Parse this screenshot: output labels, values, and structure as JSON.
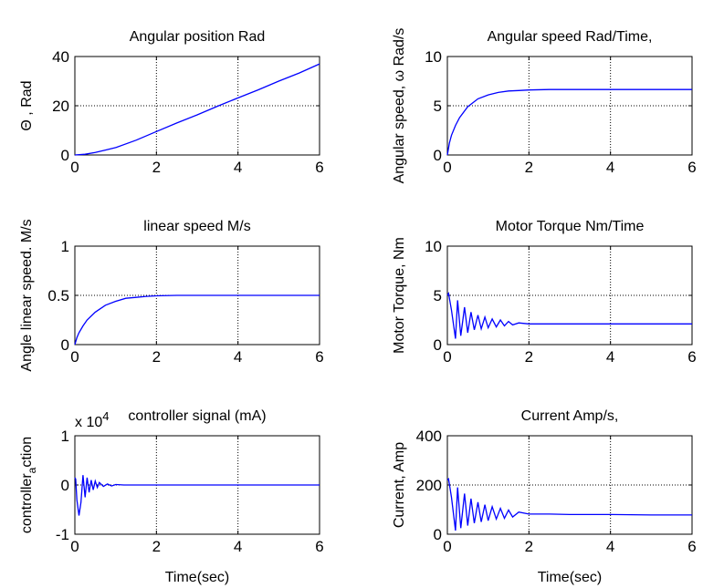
{
  "chart_data": [
    {
      "type": "line",
      "title": "Angular position Rad",
      "xlabel": "",
      "ylabel": "Θ ,  Rad",
      "xlim": [
        0,
        6
      ],
      "ylim": [
        0,
        40
      ],
      "xticks": [
        "0",
        "2",
        "4",
        "6"
      ],
      "yticks": [
        "0",
        "20",
        "40"
      ],
      "grid": true,
      "x": [
        0,
        0.25,
        0.5,
        0.75,
        1,
        1.5,
        2,
        2.5,
        3,
        3.5,
        4,
        4.5,
        5,
        5.5,
        6
      ],
      "y": [
        0,
        0.3,
        1,
        2,
        3,
        6,
        9.5,
        13,
        16.3,
        19.8,
        23.2,
        26.5,
        30,
        33.3,
        37
      ]
    },
    {
      "type": "line",
      "title": "Angular speed Rad/Time,",
      "xlabel": "",
      "ylabel": "Angular speed,  ω Rad/s",
      "xlim": [
        0,
        6
      ],
      "ylim": [
        0,
        10
      ],
      "xticks": [
        "0",
        "2",
        "4",
        "6"
      ],
      "yticks": [
        "0",
        "5",
        "10"
      ],
      "grid": true,
      "x": [
        0,
        0.05,
        0.1,
        0.2,
        0.3,
        0.5,
        0.75,
        1,
        1.25,
        1.5,
        1.75,
        2,
        2.5,
        3,
        4,
        5,
        6
      ],
      "y": [
        0,
        1.2,
        2.0,
        3.0,
        3.8,
        4.9,
        5.7,
        6.1,
        6.35,
        6.5,
        6.55,
        6.6,
        6.65,
        6.65,
        6.65,
        6.65,
        6.65
      ]
    },
    {
      "type": "line",
      "title": "linear speed M/s",
      "xlabel": "",
      "ylabel": "Angle linear speed. M/s",
      "xlim": [
        0,
        6
      ],
      "ylim": [
        0,
        1
      ],
      "xticks": [
        "0",
        "2",
        "4",
        "6"
      ],
      "yticks": [
        "0",
        "0.5",
        "1"
      ],
      "grid": true,
      "x": [
        0,
        0.05,
        0.1,
        0.2,
        0.3,
        0.5,
        0.75,
        1,
        1.25,
        1.5,
        1.75,
        2,
        2.5,
        3,
        4,
        5,
        6
      ],
      "y": [
        0,
        0.07,
        0.12,
        0.19,
        0.25,
        0.33,
        0.4,
        0.44,
        0.47,
        0.48,
        0.49,
        0.495,
        0.5,
        0.5,
        0.5,
        0.5,
        0.5
      ]
    },
    {
      "type": "line",
      "title": "Motor Torque Nm/Time",
      "xlabel": "",
      "ylabel": "Motor Torque,  Nm",
      "xlim": [
        0,
        6
      ],
      "ylim": [
        0,
        10
      ],
      "xticks": [
        "0",
        "2",
        "4",
        "6"
      ],
      "yticks": [
        "0",
        "5",
        "10"
      ],
      "grid": true,
      "x": [
        0,
        0.03,
        0.1,
        0.2,
        0.25,
        0.33,
        0.42,
        0.5,
        0.58,
        0.66,
        0.75,
        0.83,
        0.92,
        1.0,
        1.1,
        1.2,
        1.3,
        1.4,
        1.5,
        1.6,
        1.75,
        2,
        2.5,
        3,
        4,
        5,
        6
      ],
      "y": [
        5,
        5.2,
        3.5,
        0.6,
        4.5,
        0.9,
        3.8,
        1.2,
        3.3,
        1.5,
        3.0,
        1.6,
        2.8,
        1.7,
        2.6,
        1.8,
        2.5,
        1.9,
        2.35,
        2.0,
        2.2,
        2.1,
        2.1,
        2.1,
        2.1,
        2.1,
        2.1
      ]
    },
    {
      "type": "line",
      "title": "controller signal (mA)",
      "xlabel": "Time(sec)",
      "ylabel": "controller action",
      "ylabel_main": "controller",
      "ylabel_sub": "a",
      "ylabel_rest": "ction",
      "exponent": "x 10",
      "exponent_power": "4",
      "xlim": [
        0,
        6
      ],
      "ylim": [
        -1,
        1
      ],
      "xticks": [
        "0",
        "2",
        "4",
        "6"
      ],
      "yticks": [
        "-1",
        "0",
        "1"
      ],
      "grid": true,
      "x": [
        0,
        0.02,
        0.05,
        0.1,
        0.15,
        0.2,
        0.25,
        0.3,
        0.35,
        0.4,
        0.45,
        0.5,
        0.55,
        0.6,
        0.7,
        0.8,
        0.9,
        1.0,
        1.2,
        1.5,
        2,
        3,
        4,
        5,
        6
      ],
      "y": [
        0.15,
        0.12,
        -0.3,
        -0.62,
        -0.35,
        0.2,
        -0.25,
        0.15,
        -0.15,
        0.1,
        -0.1,
        0.08,
        -0.05,
        0.05,
        -0.03,
        0.02,
        -0.02,
        0.01,
        0,
        0,
        0,
        0,
        0,
        0,
        0
      ]
    },
    {
      "type": "line",
      "title": "Current Amp/s,",
      "xlabel": "Time(sec)",
      "ylabel": "Current,  Amp",
      "xlim": [
        0,
        6
      ],
      "ylim": [
        0,
        400
      ],
      "xticks": [
        "0",
        "2",
        "4",
        "6"
      ],
      "yticks": [
        "0",
        "200",
        "400"
      ],
      "grid": true,
      "x": [
        0,
        0.03,
        0.1,
        0.2,
        0.25,
        0.33,
        0.42,
        0.5,
        0.58,
        0.66,
        0.75,
        0.83,
        0.92,
        1.0,
        1.1,
        1.2,
        1.3,
        1.4,
        1.5,
        1.6,
        1.75,
        2,
        2.5,
        3,
        4,
        5,
        6
      ],
      "y": [
        220,
        225,
        150,
        15,
        190,
        25,
        165,
        35,
        145,
        45,
        130,
        50,
        120,
        55,
        112,
        62,
        105,
        65,
        98,
        70,
        90,
        82,
        82,
        80,
        80,
        78,
        78
      ]
    }
  ]
}
